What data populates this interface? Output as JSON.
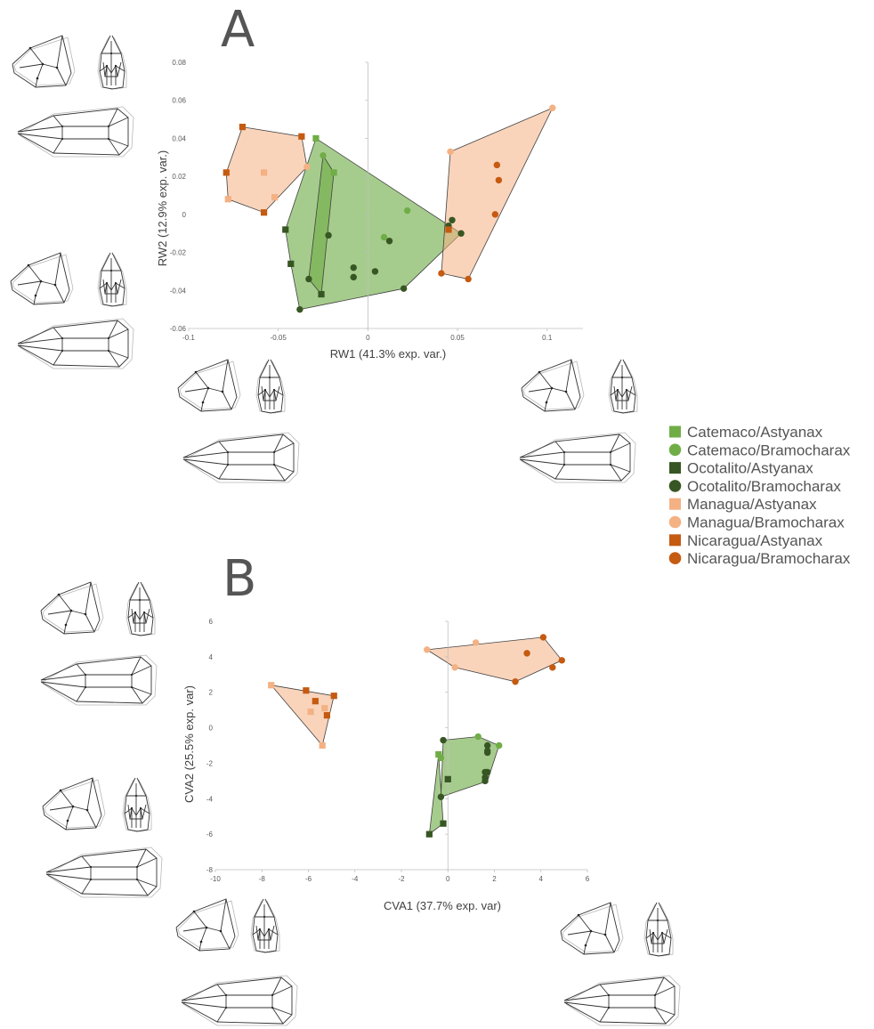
{
  "panel_labels": [
    "A",
    "B"
  ],
  "legend": [
    {
      "label": "Catemaco/Astyanax",
      "color": "#70ad47",
      "marker": "square"
    },
    {
      "label": "Catemaco/Bramocharax",
      "color": "#70ad47",
      "marker": "circle"
    },
    {
      "label": "Ocotalito/Astyanax",
      "color": "#375623",
      "marker": "square"
    },
    {
      "label": "Ocotalito/Bramocharax",
      "color": "#375623",
      "marker": "circle"
    },
    {
      "label": "Managua/Astyanax",
      "color": "#f4b183",
      "marker": "square"
    },
    {
      "label": "Managua/Bramocharax",
      "color": "#f4b183",
      "marker": "circle"
    },
    {
      "label": "Nicaragua/Astyanax",
      "color": "#c55a11",
      "marker": "square"
    },
    {
      "label": "Nicaragua/Bramocharax",
      "color": "#c55a11",
      "marker": "circle"
    }
  ],
  "hull_colors": {
    "green": "#70ad47",
    "orange": "#f4b183"
  },
  "chart_data": [
    {
      "type": "scatter",
      "panel": "A",
      "xlabel": "RW1 (41.3% exp. var.)",
      "ylabel": "RW2 (12.9% exp. var.)",
      "xlim": [
        -0.1,
        0.12
      ],
      "ylim": [
        -0.06,
        0.08
      ],
      "xticks": [
        -0.1,
        -0.05,
        0,
        0.05,
        0.1
      ],
      "xtick_labels": [
        "-0.1",
        "-0.05",
        "0",
        "0.05",
        "0.1"
      ],
      "yticks": [
        -0.06,
        -0.04,
        -0.02,
        0,
        0.02,
        0.04,
        0.06,
        0.08
      ],
      "ytick_labels": [
        "-0.06",
        "-0.04",
        "-0.02",
        "0",
        "0.02",
        "0.04",
        "0.06",
        "0.08"
      ],
      "grid": false,
      "hulls": [
        {
          "group": "green",
          "points": [
            [
              -0.029,
              0.04
            ],
            [
              0.052,
              -0.01
            ],
            [
              0.02,
              -0.039
            ],
            [
              -0.038,
              -0.05
            ],
            [
              -0.043,
              -0.026
            ],
            [
              -0.046,
              -0.008
            ]
          ]
        },
        {
          "group": "green",
          "points": [
            [
              -0.025,
              0.031
            ],
            [
              -0.019,
              0.022
            ],
            [
              -0.026,
              -0.042
            ],
            [
              -0.033,
              -0.034
            ]
          ]
        },
        {
          "group": "orange",
          "points": [
            [
              -0.07,
              0.046
            ],
            [
              -0.037,
              0.041
            ],
            [
              -0.034,
              0.025
            ],
            [
              -0.058,
              0.001
            ],
            [
              -0.078,
              0.008
            ],
            [
              -0.079,
              0.022
            ]
          ]
        },
        {
          "group": "orange",
          "points": [
            [
              0.103,
              0.056
            ],
            [
              0.056,
              -0.034
            ],
            [
              0.041,
              -0.031
            ],
            [
              0.046,
              0.033
            ]
          ]
        }
      ],
      "series": [
        {
          "name": "Catemaco/Astyanax",
          "points": [
            [
              -0.029,
              0.04
            ],
            [
              -0.019,
              0.022
            ]
          ]
        },
        {
          "name": "Catemaco/Bramocharax",
          "points": [
            [
              -0.025,
              0.031
            ],
            [
              0.022,
              0.002
            ],
            [
              0.009,
              -0.012
            ]
          ]
        },
        {
          "name": "Ocotalito/Astyanax",
          "points": [
            [
              -0.046,
              -0.008
            ],
            [
              -0.043,
              -0.026
            ],
            [
              -0.026,
              -0.042
            ]
          ]
        },
        {
          "name": "Ocotalito/Bramocharax",
          "points": [
            [
              -0.038,
              -0.05
            ],
            [
              -0.033,
              -0.034
            ],
            [
              -0.022,
              -0.011
            ],
            [
              -0.008,
              -0.028
            ],
            [
              -0.008,
              -0.033
            ],
            [
              0.004,
              -0.03
            ],
            [
              0.012,
              -0.014
            ],
            [
              0.02,
              -0.039
            ],
            [
              0.047,
              -0.003
            ],
            [
              0.045,
              -0.006
            ],
            [
              0.052,
              -0.01
            ]
          ]
        },
        {
          "name": "Managua/Astyanax",
          "points": [
            [
              -0.078,
              0.008
            ],
            [
              -0.058,
              0.022
            ],
            [
              -0.052,
              0.009
            ]
          ]
        },
        {
          "name": "Managua/Bramocharax",
          "points": [
            [
              -0.034,
              0.025
            ],
            [
              0.046,
              0.033
            ],
            [
              0.103,
              0.056
            ]
          ]
        },
        {
          "name": "Nicaragua/Astyanax",
          "points": [
            [
              -0.07,
              0.046
            ],
            [
              -0.037,
              0.041
            ],
            [
              -0.079,
              0.022
            ],
            [
              -0.058,
              0.001
            ],
            [
              0.045,
              -0.008
            ]
          ]
        },
        {
          "name": "Nicaragua/Bramocharax",
          "points": [
            [
              0.072,
              0.026
            ],
            [
              0.073,
              0.018
            ],
            [
              0.071,
              0.0
            ],
            [
              0.041,
              -0.031
            ],
            [
              0.056,
              -0.034
            ]
          ]
        }
      ]
    },
    {
      "type": "scatter",
      "panel": "B",
      "xlabel": "CVA1 (37.7% exp. var)",
      "ylabel": "CVA2 (25.5% exp. var)",
      "xlim": [
        -10,
        6
      ],
      "ylim": [
        -8,
        6
      ],
      "xticks": [
        -10,
        -8,
        -6,
        -4,
        -2,
        0,
        2,
        4,
        6
      ],
      "xtick_labels": [
        "-10",
        "-8",
        "-6",
        "-4",
        "-2",
        "0",
        "2",
        "4",
        "6"
      ],
      "yticks": [
        -8,
        -6,
        -4,
        -2,
        0,
        2,
        4,
        6
      ],
      "ytick_labels": [
        "-8",
        "-6",
        "-4",
        "-2",
        "0",
        "2",
        "4",
        "6"
      ],
      "grid": false,
      "hulls": [
        {
          "group": "orange",
          "points": [
            [
              -7.6,
              2.4
            ],
            [
              -4.9,
              1.8
            ],
            [
              -5.4,
              -1.0
            ]
          ]
        },
        {
          "group": "orange",
          "points": [
            [
              -0.9,
              4.4
            ],
            [
              4.1,
              5.1
            ],
            [
              4.9,
              3.8
            ],
            [
              2.9,
              2.6
            ],
            [
              0.3,
              3.4
            ]
          ]
        },
        {
          "group": "green",
          "points": [
            [
              -0.2,
              -0.7
            ],
            [
              1.3,
              -0.5
            ],
            [
              2.2,
              -1.0
            ],
            [
              1.7,
              -3.0
            ],
            [
              -0.3,
              -3.9
            ]
          ]
        },
        {
          "group": "green",
          "points": [
            [
              -0.4,
              -1.5
            ],
            [
              -0.2,
              -5.4
            ],
            [
              -0.8,
              -6.0
            ]
          ]
        }
      ],
      "series": [
        {
          "name": "Catemaco/Astyanax",
          "points": [
            [
              -0.4,
              -1.5
            ]
          ]
        },
        {
          "name": "Catemaco/Bramocharax",
          "points": [
            [
              1.3,
              -0.5
            ],
            [
              2.2,
              -1.0
            ],
            [
              -0.3,
              -1.7
            ]
          ]
        },
        {
          "name": "Ocotalito/Astyanax",
          "points": [
            [
              0.0,
              -2.9
            ],
            [
              -0.2,
              -5.4
            ],
            [
              -0.8,
              -6.0
            ]
          ]
        },
        {
          "name": "Ocotalito/Bramocharax",
          "points": [
            [
              -0.2,
              -0.7
            ],
            [
              1.7,
              -1.0
            ],
            [
              1.7,
              -1.3
            ],
            [
              1.7,
              -1.4
            ],
            [
              1.6,
              -2.5
            ],
            [
              1.7,
              -2.5
            ],
            [
              1.6,
              -2.8
            ],
            [
              1.6,
              -3.0
            ],
            [
              -0.3,
              -3.9
            ]
          ]
        },
        {
          "name": "Managua/Astyanax",
          "points": [
            [
              -7.6,
              2.4
            ],
            [
              -5.9,
              0.9
            ],
            [
              -5.4,
              -1.0
            ],
            [
              -5.3,
              1.1
            ]
          ]
        },
        {
          "name": "Managua/Bramocharax",
          "points": [
            [
              -0.9,
              4.4
            ],
            [
              1.2,
              4.8
            ],
            [
              0.3,
              3.4
            ]
          ]
        },
        {
          "name": "Nicaragua/Astyanax",
          "points": [
            [
              -6.1,
              2.1
            ],
            [
              -5.7,
              1.5
            ],
            [
              -5.2,
              0.7
            ],
            [
              -4.9,
              1.8
            ]
          ]
        },
        {
          "name": "Nicaragua/Bramocharax",
          "points": [
            [
              4.1,
              5.1
            ],
            [
              3.4,
              4.2
            ],
            [
              4.9,
              3.8
            ],
            [
              4.5,
              3.4
            ],
            [
              2.9,
              2.6
            ]
          ]
        }
      ]
    }
  ]
}
